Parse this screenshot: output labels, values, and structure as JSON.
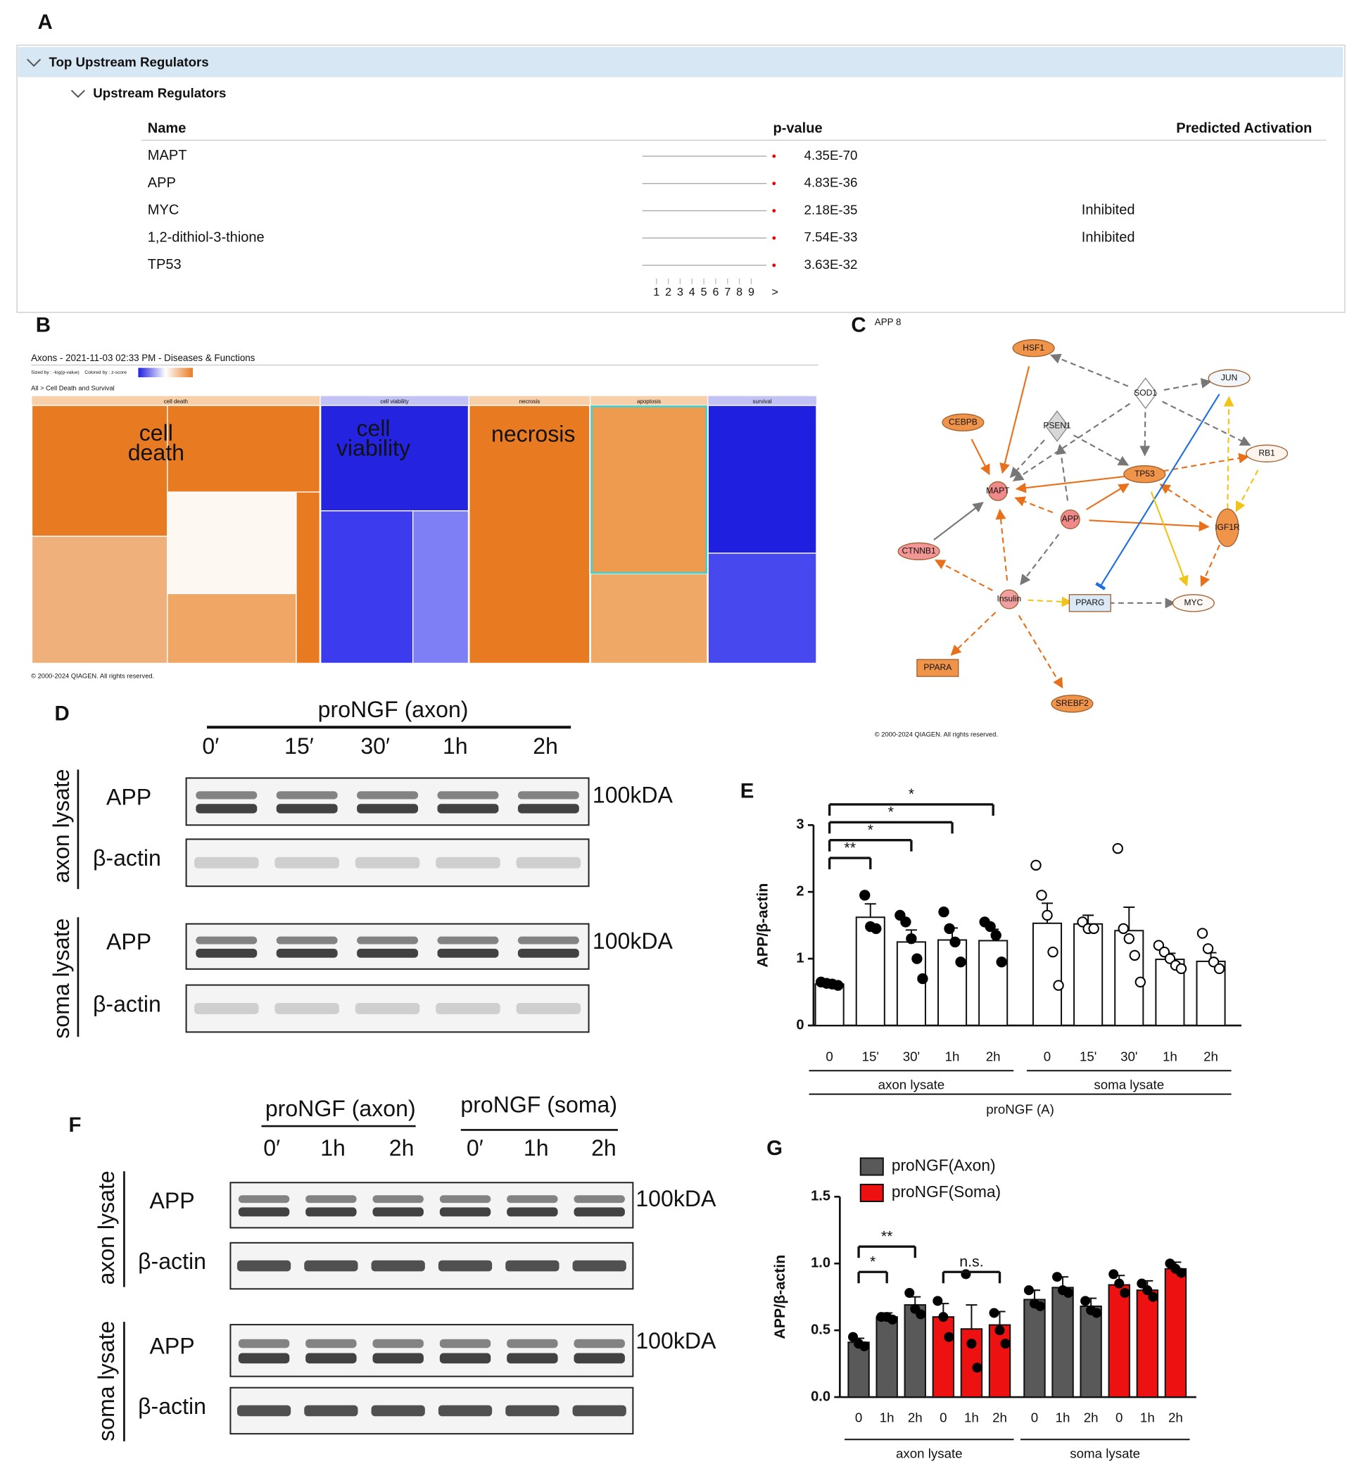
{
  "panel_a": {
    "label": "A",
    "section": "Top Upstream Regulators",
    "subsection": "Upstream Regulators",
    "columns": [
      "Name",
      "p-value",
      "Predicted Activation"
    ],
    "rows": [
      {
        "name": "MAPT",
        "p_value": "4.35E-70"
      },
      {
        "name": "APP",
        "p_value": "4.83E-36"
      },
      {
        "name": "MYC",
        "p_value": "2.18E-35",
        "activation": "Inhibited"
      },
      {
        "name": "1,2-dithiol-3-thione",
        "p_value": "7.54E-33",
        "activation": "Inhibited"
      },
      {
        "name": "TP53",
        "p_value": "3.63E-32"
      }
    ],
    "pages": [
      1,
      2,
      3,
      4,
      5,
      6,
      7,
      8,
      9
    ],
    "next": ">"
  },
  "panel_b": {
    "label": "B",
    "title": "Axons - 2021-11-03 02:33 PM - Diseases & Functions",
    "sized_by": "Sized by : -log(p-value)",
    "colored_by": "Colored by : z-score",
    "breadcrumb": "All > Cell Death and Survival",
    "categories": [
      "cell death",
      "cell viability",
      "necrosis",
      "apoptosis",
      "survival"
    ],
    "overlay_labels": [
      [
        "cell",
        "death"
      ],
      [
        "cell",
        "viability"
      ],
      [
        "necrosis"
      ]
    ],
    "copyright": "© 2000-2024 QIAGEN. All rights reserved."
  },
  "panel_c": {
    "label": "C",
    "title": "APP 8",
    "nodes": [
      "HSF1",
      "SOD1",
      "JUN",
      "CEBPB",
      "PSEN1",
      "RB1",
      "TP53",
      "MAPT",
      "APP",
      "IGF1R",
      "CTNNB1",
      "Insulin",
      "PPARG",
      "MYC",
      "PPARA",
      "SREBF2"
    ],
    "copyright": "© 2000-2024 QIAGEN. All rights reserved."
  },
  "panel_d": {
    "label": "D",
    "treatment": "proNGF (axon)",
    "times": [
      "0′",
      "15′",
      "30′",
      "1h",
      "2h"
    ],
    "lysates": [
      "axon lysate",
      "soma lysate"
    ],
    "bands": [
      "APP",
      "β-actin"
    ],
    "marker": "100kDA"
  },
  "panel_f": {
    "label": "F",
    "treatments": [
      {
        "label": "proNGF (axon)",
        "times": [
          "0′",
          "1h",
          "2h"
        ]
      },
      {
        "label": "proNGF (soma)",
        "times": [
          "0′",
          "1h",
          "2h"
        ]
      }
    ],
    "lysates": [
      "axon lysate",
      "soma lysate"
    ],
    "bands": [
      "APP",
      "β-actin"
    ],
    "marker": "100kDA"
  },
  "chart_data": [
    {
      "type": "bar",
      "label": "E",
      "ylabel": "APP/β-actin",
      "xlabel": "proNGF (A)",
      "ylim": [
        0,
        3
      ],
      "yticks": [
        0,
        1,
        2,
        3
      ],
      "groups": [
        {
          "label": "axon lysate",
          "categories": [
            "0",
            "15'",
            "30'",
            "1h",
            "2h"
          ],
          "marker_fill": "#000000"
        },
        {
          "label": "soma lysate",
          "categories": [
            "0",
            "15'",
            "30'",
            "1h",
            "2h"
          ],
          "marker_fill": "#ffffff"
        }
      ],
      "series": [
        {
          "color": "#ffffff",
          "values": [
            0.62,
            1.62,
            1.25,
            1.28,
            1.27,
            1.53,
            1.52,
            1.42,
            0.99,
            0.96
          ],
          "errors": [
            0.02,
            0.2,
            0.18,
            0.18,
            0.17,
            0.3,
            0.13,
            0.35,
            0.09,
            0.13
          ],
          "points": [
            [
              0.65,
              0.63,
              0.62,
              0.6
            ],
            [
              1.95,
              1.48,
              1.45
            ],
            [
              1.65,
              1.55,
              1.3,
              1.0,
              0.7
            ],
            [
              1.7,
              1.45,
              1.25,
              0.95
            ],
            [
              1.55,
              1.48,
              1.35,
              0.95
            ],
            [
              2.4,
              1.95,
              1.65,
              1.1,
              0.6
            ],
            [
              1.55,
              1.45,
              1.45
            ],
            [
              2.65,
              1.45,
              1.3,
              1.05,
              0.65
            ],
            [
              1.2,
              1.1,
              1.0,
              0.9,
              0.85
            ],
            [
              1.38,
              1.15,
              0.95,
              0.85
            ]
          ],
          "significance": [
            null,
            "**",
            "*",
            "*",
            "*",
            null,
            null,
            null,
            null,
            null
          ]
        }
      ]
    },
    {
      "type": "bar",
      "label": "G",
      "ylabel": "APP/β-actin",
      "ylim": [
        0,
        1.5
      ],
      "yticks": [
        {
          "value": 0,
          "label": "0.0"
        },
        0.5,
        {
          "value": 1,
          "label": "1.0"
        },
        1.5
      ],
      "groups": [
        {
          "label": "axon lysate",
          "categories": [
            "0",
            "1h",
            "2h",
            "0",
            "1h",
            "2h"
          ]
        },
        {
          "label": "soma lysate",
          "categories": [
            "0",
            "1h",
            "2h",
            "0",
            "1h",
            "2h"
          ]
        }
      ],
      "series": [
        {
          "name": "proNGF(Axon)",
          "color": "#595959",
          "values": [
            0.41,
            0.6,
            0.69,
            null,
            null,
            null,
            0.73,
            0.82,
            0.68,
            null,
            null,
            null
          ],
          "errors": [
            0.03,
            0.03,
            0.06,
            null,
            null,
            null,
            0.07,
            0.08,
            0.06,
            null,
            null,
            null
          ],
          "points": [
            [
              0.45,
              0.4,
              0.38
            ],
            [
              0.6,
              0.6,
              0.58
            ],
            [
              0.78,
              0.66,
              0.62
            ],
            null,
            null,
            null,
            [
              0.8,
              0.7,
              0.68
            ],
            [
              0.9,
              0.8,
              0.78
            ],
            [
              0.72,
              0.65,
              0.63
            ],
            null,
            null,
            null
          ],
          "significance": [
            null,
            "*",
            "**",
            null,
            null,
            null,
            null,
            null,
            null,
            null,
            null,
            null
          ]
        },
        {
          "name": "proNGF(Soma)",
          "color": "#ee1111",
          "values": [
            null,
            null,
            null,
            0.6,
            0.51,
            0.54,
            null,
            null,
            null,
            0.84,
            0.8,
            0.96
          ],
          "errors": [
            null,
            null,
            null,
            0.1,
            0.18,
            0.1,
            null,
            null,
            null,
            0.07,
            0.07,
            0.05
          ],
          "points": [
            null,
            null,
            null,
            [
              0.72,
              0.6,
              0.45
            ],
            [
              0.92,
              0.4,
              0.22
            ],
            [
              0.63,
              0.5,
              0.4
            ],
            null,
            null,
            null,
            [
              0.92,
              0.85,
              0.78
            ],
            [
              0.85,
              0.8,
              0.75
            ],
            [
              1.0,
              0.96,
              0.93
            ]
          ],
          "significance": [
            null,
            null,
            null,
            null,
            null,
            "n.s.",
            null,
            null,
            null,
            null,
            null,
            null
          ]
        }
      ]
    }
  ]
}
